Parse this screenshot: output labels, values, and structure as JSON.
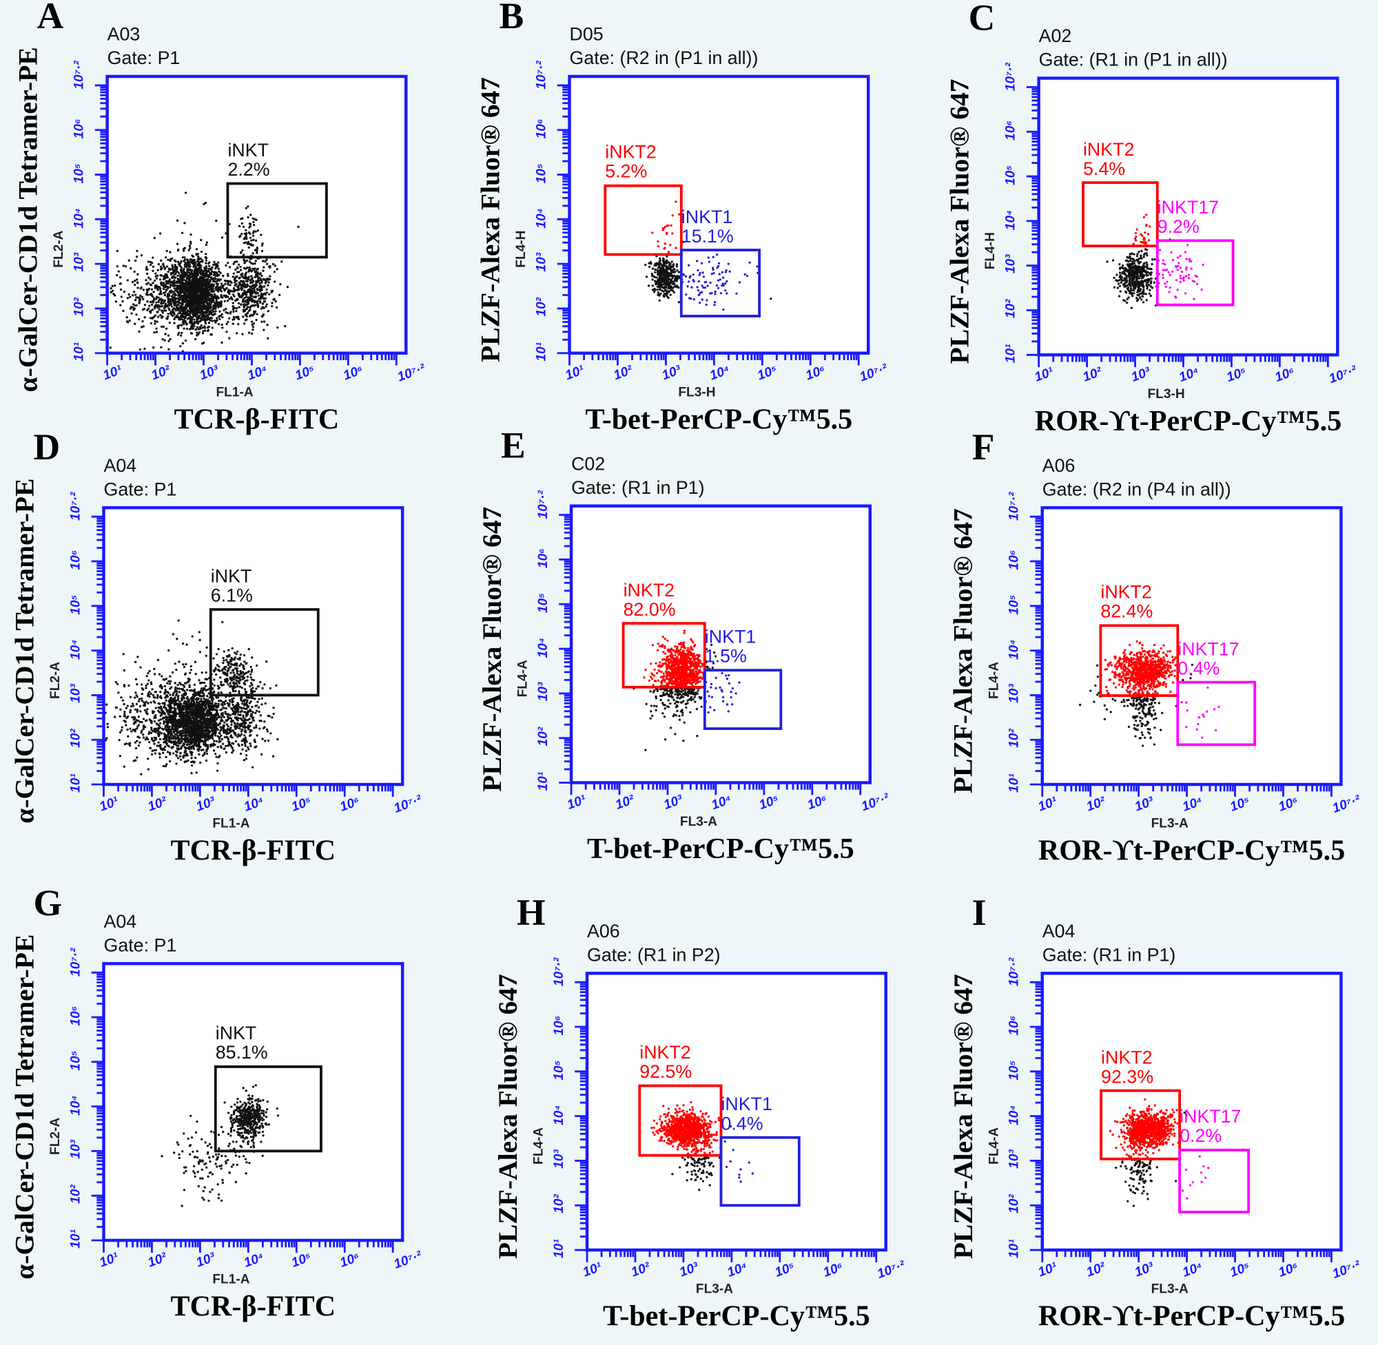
{
  "axis": {
    "range": [
      1,
      7.2
    ],
    "tick_values": [
      1,
      2,
      3,
      4,
      5,
      6,
      7.2
    ],
    "tick_labels": [
      "10¹",
      "10²",
      "10³",
      "10⁴",
      "10⁵",
      "10⁶",
      "10⁷·²"
    ],
    "axis_color": "#1a1aff"
  },
  "chart_data": [
    {
      "type": "scatter",
      "panel": "A",
      "sample": "A03",
      "gate": "Gate: P1",
      "xchannel": "FL1-A",
      "ychannel": "FL2-A",
      "xlabel": "TCR-β-FITC",
      "ylabel": "α-GalCer-CD1d Tetramer-PE",
      "color_events": false,
      "gates": [
        {
          "name": "iNKT",
          "pct": "2.2%",
          "color": "#111111",
          "x": [
            3.5,
            5.55
          ],
          "y": [
            3.15,
            4.8
          ]
        }
      ],
      "populations": [
        {
          "c": [
            2.85,
            2.35
          ],
          "sd": [
            0.25,
            0.35
          ],
          "n": 1400
        },
        {
          "c": [
            2.4,
            2.3
          ],
          "sd": [
            0.55,
            0.5
          ],
          "n": 700
        },
        {
          "c": [
            4.0,
            2.4
          ],
          "sd": [
            0.25,
            0.35
          ],
          "n": 450
        },
        {
          "c": [
            3.95,
            3.6
          ],
          "sd": [
            0.15,
            0.3
          ],
          "n": 70
        },
        {
          "c": [
            3.2,
            3.0
          ],
          "sd": [
            0.6,
            0.8
          ],
          "n": 60
        }
      ]
    },
    {
      "type": "scatter",
      "panel": "B",
      "sample": "D05",
      "gate": "Gate: (R2 in (P1 in all))",
      "xchannel": "FL3-H",
      "ychannel": "FL4-H",
      "xlabel": "T-bet-PerCP-Cy™5.5",
      "ylabel": "PLZF-Alexa Fluor® 647",
      "color_events": true,
      "gates": [
        {
          "name": "iNKT2",
          "pct": "5.2%",
          "color": "#ff0000",
          "x": [
            1.74,
            3.32
          ],
          "y": [
            3.21,
            4.75
          ]
        },
        {
          "name": "iNKT1",
          "pct": "15.1%",
          "color": "#2020e0",
          "x": [
            3.32,
            4.94
          ],
          "y": [
            1.83,
            3.31
          ]
        }
      ],
      "populations": [
        {
          "c": [
            3.0,
            2.7
          ],
          "sd": [
            0.15,
            0.2
          ],
          "n": 350
        },
        {
          "c": [
            3.9,
            2.6
          ],
          "sd": [
            0.35,
            0.3
          ],
          "n": 90
        },
        {
          "c": [
            3.05,
            3.6
          ],
          "sd": [
            0.15,
            0.3
          ],
          "n": 25
        }
      ]
    },
    {
      "type": "scatter",
      "panel": "C",
      "sample": "A02",
      "gate": "Gate: (R1 in (P1 in all))",
      "xchannel": "FL3-H",
      "ychannel": "FL4-H",
      "xlabel": "ROR-ϒt-PerCP-Cy™5.5",
      "ylabel": "PLZF-Alexa Fluor® 647",
      "color_events": true,
      "gates": [
        {
          "name": "iNKT2",
          "pct": "5.4%",
          "color": "#ff0000",
          "x": [
            1.92,
            3.46
          ],
          "y": [
            3.44,
            4.86
          ]
        },
        {
          "name": "iNKT17",
          "pct": "9.2%",
          "color": "#ff00ff",
          "x": [
            3.46,
            5.03
          ],
          "y": [
            2.12,
            3.56
          ]
        }
      ],
      "populations": [
        {
          "c": [
            3.0,
            2.75
          ],
          "sd": [
            0.17,
            0.25
          ],
          "n": 400
        },
        {
          "c": [
            3.85,
            2.9
          ],
          "sd": [
            0.3,
            0.3
          ],
          "n": 70
        },
        {
          "c": [
            3.2,
            3.6
          ],
          "sd": [
            0.1,
            0.25
          ],
          "n": 30
        }
      ]
    },
    {
      "type": "scatter",
      "panel": "D",
      "sample": "A04",
      "gate": "Gate: P1",
      "xchannel": "FL1-A",
      "ychannel": "FL2-A",
      "xlabel": "TCR-β-FITC",
      "ylabel": "α-GalCer-CD1d Tetramer-PE",
      "color_events": false,
      "gates": [
        {
          "name": "iNKT",
          "pct": "6.1%",
          "color": "#111111",
          "x": [
            3.22,
            5.45
          ],
          "y": [
            3.0,
            4.92
          ]
        }
      ],
      "populations": [
        {
          "c": [
            2.9,
            2.4
          ],
          "sd": [
            0.3,
            0.35
          ],
          "n": 1400
        },
        {
          "c": [
            2.3,
            2.5
          ],
          "sd": [
            0.5,
            0.45
          ],
          "n": 600
        },
        {
          "c": [
            3.9,
            2.5
          ],
          "sd": [
            0.25,
            0.4
          ],
          "n": 350
        },
        {
          "c": [
            3.7,
            3.5
          ],
          "sd": [
            0.2,
            0.25
          ],
          "n": 180
        },
        {
          "c": [
            3.0,
            3.3
          ],
          "sd": [
            0.6,
            0.7
          ],
          "n": 80
        }
      ]
    },
    {
      "type": "scatter",
      "panel": "E",
      "sample": "C02",
      "gate": "Gate: (R1 in P1)",
      "xchannel": "FL3-A",
      "ychannel": "FL4-A",
      "xlabel": "T-bet-PerCP-Cy™5.5",
      "ylabel": "PLZF-Alexa Fluor® 647",
      "color_events": true,
      "gates": [
        {
          "name": "iNKT2",
          "pct": "82.0%",
          "color": "#ff0000",
          "x": [
            2.08,
            3.77
          ],
          "y": [
            3.14,
            4.57
          ]
        },
        {
          "name": "iNKT1",
          "pct": "1.5%",
          "color": "#2020e0",
          "x": [
            3.77,
            5.35
          ],
          "y": [
            2.21,
            3.52
          ]
        }
      ],
      "populations": [
        {
          "c": [
            3.3,
            3.5
          ],
          "sd": [
            0.22,
            0.3
          ],
          "n": 900
        },
        {
          "c": [
            3.1,
            3.0
          ],
          "sd": [
            0.3,
            0.45
          ],
          "n": 150
        },
        {
          "c": [
            4.1,
            3.0
          ],
          "sd": [
            0.2,
            0.25
          ],
          "n": 25
        }
      ]
    },
    {
      "type": "scatter",
      "panel": "F",
      "sample": "A06",
      "gate": "Gate: (R2 in (P4 in all))",
      "xchannel": "FL3-A",
      "ychannel": "FL4-A",
      "xlabel": "ROR-ϒt-PerCP-Cy™5.5",
      "ylabel": "PLZF-Alexa Fluor® 647",
      "color_events": true,
      "gates": [
        {
          "name": "iNKT2",
          "pct": "82.4%",
          "color": "#ff0000",
          "x": [
            2.21,
            3.81
          ],
          "y": [
            2.99,
            4.56
          ]
        },
        {
          "name": "iNKT17",
          "pct": "0.4%",
          "color": "#ff00ff",
          "x": [
            3.81,
            5.41
          ],
          "y": [
            1.89,
            3.29
          ]
        }
      ],
      "populations": [
        {
          "c": [
            3.1,
            3.55
          ],
          "sd": [
            0.3,
            0.22
          ],
          "n": 800
        },
        {
          "c": [
            3.1,
            2.8
          ],
          "sd": [
            0.15,
            0.35
          ],
          "n": 200
        },
        {
          "c": [
            2.3,
            3.0
          ],
          "sd": [
            0.3,
            0.3
          ],
          "n": 25
        },
        {
          "c": [
            4.2,
            2.6
          ],
          "sd": [
            0.3,
            0.3
          ],
          "n": 15
        }
      ]
    },
    {
      "type": "scatter",
      "panel": "G",
      "sample": "A04",
      "gate": "Gate: P1",
      "xchannel": "FL1-A",
      "ychannel": "FL2-A",
      "xlabel": "TCR-β-FITC",
      "ylabel": "α-GalCer-CD1d Tetramer-PE",
      "color_events": false,
      "gates": [
        {
          "name": "iNKT",
          "pct": "85.1%",
          "color": "#111111",
          "x": [
            3.32,
            5.51
          ],
          "y": [
            3.0,
            4.89
          ]
        }
      ],
      "populations": [
        {
          "c": [
            4.0,
            3.7
          ],
          "sd": [
            0.17,
            0.25
          ],
          "n": 400
        },
        {
          "c": [
            3.2,
            2.8
          ],
          "sd": [
            0.4,
            0.4
          ],
          "n": 120
        }
      ]
    },
    {
      "type": "scatter",
      "panel": "H",
      "sample": "A06",
      "gate": "Gate: (R1 in P2)",
      "xchannel": "FL3-A",
      "ychannel": "FL4-A",
      "xlabel": "T-bet-PerCP-Cy™5.5",
      "ylabel": "PLZF-Alexa Fluor® 647",
      "color_events": true,
      "gates": [
        {
          "name": "iNKT2",
          "pct": "92.5%",
          "color": "#ff0000",
          "x": [
            2.09,
            3.78
          ],
          "y": [
            3.12,
            4.68
          ]
        },
        {
          "name": "iNKT1",
          "pct": "0.4%",
          "color": "#2020e0",
          "x": [
            3.78,
            5.4
          ],
          "y": [
            2.0,
            3.52
          ]
        }
      ],
      "populations": [
        {
          "c": [
            3.05,
            3.7
          ],
          "sd": [
            0.25,
            0.18
          ],
          "n": 900
        },
        {
          "c": [
            3.3,
            3.0
          ],
          "sd": [
            0.18,
            0.3
          ],
          "n": 120
        },
        {
          "c": [
            4.2,
            2.8
          ],
          "sd": [
            0.2,
            0.3
          ],
          "n": 10
        }
      ]
    },
    {
      "type": "scatter",
      "panel": "I",
      "sample": "A04",
      "gate": "Gate: (R1 in P1)",
      "xchannel": "FL3-A",
      "ychannel": "FL4-A",
      "xlabel": "ROR-ϒt-PerCP-Cy™5.5",
      "ylabel": "PLZF-Alexa Fluor® 647",
      "color_events": true,
      "gates": [
        {
          "name": "iNKT2",
          "pct": "92.3%",
          "color": "#ff0000",
          "x": [
            2.22,
            3.85
          ],
          "y": [
            3.04,
            4.57
          ]
        },
        {
          "name": "iNKT17",
          "pct": "0.2%",
          "color": "#ff00ff",
          "x": [
            3.85,
            5.28
          ],
          "y": [
            1.85,
            3.24
          ]
        }
      ],
      "populations": [
        {
          "c": [
            3.2,
            3.7
          ],
          "sd": [
            0.25,
            0.2
          ],
          "n": 900
        },
        {
          "c": [
            3.0,
            2.9
          ],
          "sd": [
            0.15,
            0.35
          ],
          "n": 130
        },
        {
          "c": [
            4.2,
            2.6
          ],
          "sd": [
            0.3,
            0.3
          ],
          "n": 12
        }
      ]
    }
  ]
}
